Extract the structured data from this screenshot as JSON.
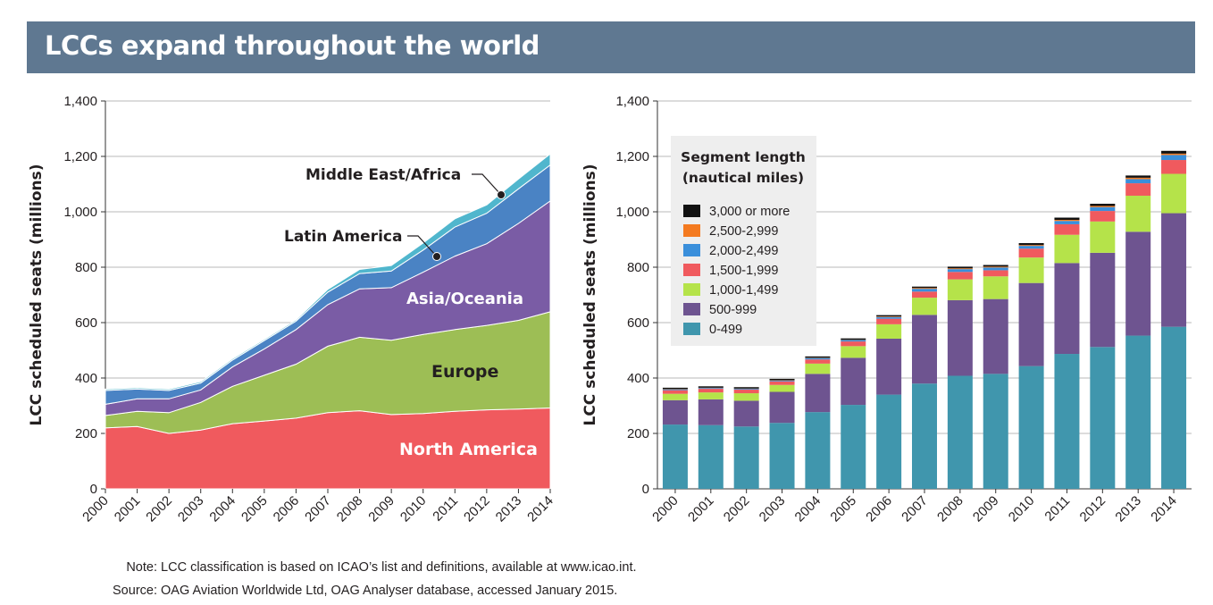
{
  "title": "LCCs expand throughout the world",
  "note_label": "Note:",
  "note_text": "LCC classification is based on ICAO’s list and definitions, available at www.icao.int.",
  "source_label": "Source:",
  "source_text": "OAG Aviation Worldwide Ltd, OAG Analyser database, accessed January 2015.",
  "colors": {
    "north_america": "#f05a5e",
    "europe": "#9dbe55",
    "asia_oceania": "#7a5ca5",
    "latin_america": "#4a83c4",
    "middle_east_africa": "#50b6cd",
    "seg_3000": "#111111",
    "seg_2500": "#f47a20",
    "seg_2000": "#3a8fdb",
    "seg_1500": "#f05a5e",
    "seg_1000": "#b5e34a",
    "seg_500": "#6e5490",
    "seg_0": "#4096ad",
    "title_bar": "#5f7891",
    "legend_bg": "#eeeeee"
  },
  "chart_data": [
    {
      "type": "area",
      "stacked": true,
      "ylabel": "LCC scheduled seats (millions)",
      "ylim": [
        0,
        1400
      ],
      "yticks": [
        "0",
        "200",
        "400",
        "600",
        "800",
        "1,000",
        "1,200",
        "1,400"
      ],
      "ytick_values": [
        0,
        200,
        400,
        600,
        800,
        1000,
        1200,
        1400
      ],
      "grid": true,
      "categories": [
        "2000",
        "2001",
        "2002",
        "2003",
        "2004",
        "2005",
        "2006",
        "2007",
        "2008",
        "2009",
        "2010",
        "2011",
        "2012",
        "2013",
        "2014"
      ],
      "series": [
        {
          "name": "North America",
          "values": [
            220,
            225,
            200,
            212,
            235,
            245,
            255,
            275,
            282,
            268,
            272,
            280,
            285,
            288,
            292
          ]
        },
        {
          "name": "Europe",
          "values": [
            45,
            55,
            75,
            100,
            135,
            165,
            195,
            240,
            265,
            268,
            285,
            295,
            305,
            320,
            347
          ]
        },
        {
          "name": "Asia/Oceania",
          "values": [
            40,
            45,
            50,
            45,
            70,
            95,
            125,
            150,
            175,
            190,
            225,
            265,
            295,
            350,
            400
          ]
        },
        {
          "name": "Latin America",
          "values": [
            50,
            35,
            30,
            25,
            25,
            30,
            30,
            45,
            55,
            60,
            80,
            105,
            110,
            125,
            130
          ]
        },
        {
          "name": "Middle East/Africa",
          "values": [
            5,
            5,
            5,
            5,
            5,
            5,
            5,
            10,
            15,
            20,
            25,
            30,
            30,
            35,
            40
          ]
        }
      ],
      "annotations": [
        "Middle East/Africa",
        "Latin America",
        "Asia/Oceania",
        "Europe",
        "North America"
      ]
    },
    {
      "type": "bar",
      "stacked": true,
      "ylabel": "LCC scheduled seats (millions)",
      "ylim": [
        0,
        1400
      ],
      "yticks": [
        "0",
        "200",
        "400",
        "600",
        "800",
        "1,000",
        "1,200",
        "1,400"
      ],
      "ytick_values": [
        0,
        200,
        400,
        600,
        800,
        1000,
        1200,
        1400
      ],
      "grid": true,
      "legend_title_1": "Segment length",
      "legend_title_2": "(nautical miles)",
      "legend_placement": "top-left",
      "categories": [
        "2000",
        "2001",
        "2002",
        "2003",
        "2004",
        "2005",
        "2006",
        "2007",
        "2008",
        "2009",
        "2010",
        "2011",
        "2012",
        "2013",
        "2014"
      ],
      "series": [
        {
          "name": "0-499",
          "values": [
            232,
            230,
            225,
            238,
            277,
            303,
            340,
            380,
            408,
            415,
            443,
            487,
            512,
            553,
            585
          ]
        },
        {
          "name": "500-999",
          "values": [
            88,
            93,
            93,
            112,
            138,
            170,
            202,
            248,
            273,
            270,
            300,
            328,
            340,
            375,
            410
          ]
        },
        {
          "name": "1,000-1,499",
          "values": [
            23,
            25,
            27,
            25,
            37,
            42,
            52,
            62,
            75,
            82,
            92,
            102,
            113,
            130,
            142
          ]
        },
        {
          "name": "1,500-1,999",
          "values": [
            13,
            13,
            13,
            13,
            15,
            17,
            20,
            22,
            27,
            22,
            32,
            38,
            38,
            45,
            50
          ]
        },
        {
          "name": "2,000-2,499",
          "values": [
            3,
            3,
            3,
            3,
            5,
            5,
            6,
            10,
            10,
            10,
            10,
            12,
            14,
            15,
            18
          ]
        },
        {
          "name": "2,500-2,999",
          "values": [
            1,
            1,
            1,
            1,
            1,
            1,
            2,
            3,
            3,
            3,
            3,
            4,
            4,
            5,
            5
          ]
        },
        {
          "name": "3,000 or more",
          "values": [
            5,
            5,
            5,
            5,
            5,
            5,
            5,
            5,
            6,
            6,
            7,
            8,
            8,
            8,
            10
          ]
        }
      ]
    }
  ]
}
